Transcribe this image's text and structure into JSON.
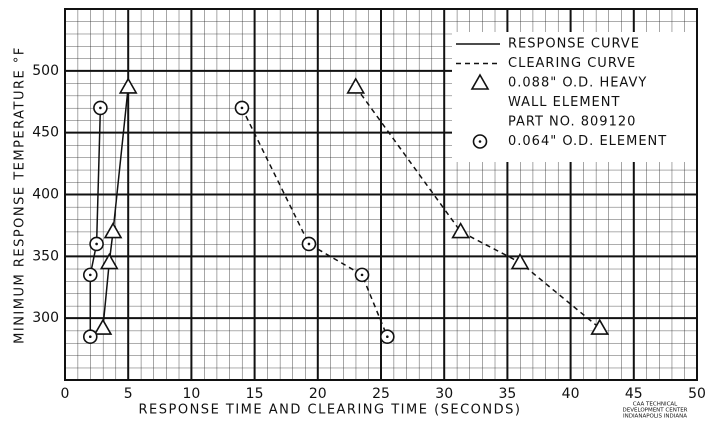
{
  "chart_data": {
    "type": "line",
    "x_label": "RESPONSE TIME AND CLEARING TIME (SECONDS)",
    "y_label": "MINIMUM RESPONSE TEMPERATURE °F",
    "xlim": [
      0,
      50
    ],
    "xticks": [
      0,
      5,
      10,
      15,
      20,
      25,
      30,
      35,
      40,
      45,
      50
    ],
    "ylim": [
      250,
      550
    ],
    "yticks": [
      300,
      350,
      400,
      450,
      500
    ],
    "grid": true,
    "color": "#111111",
    "series": [
      {
        "marker": "triangle",
        "line": "solid",
        "x": [
          3,
          3.5,
          3.8,
          5
        ],
        "values": [
          292,
          345,
          370,
          487
        ]
      },
      {
        "marker": "circle",
        "line": "solid",
        "x": [
          2,
          2,
          2.5,
          2.8
        ],
        "values": [
          285,
          335,
          360,
          470
        ]
      },
      {
        "marker": "triangle",
        "line": "dashed",
        "x": [
          23,
          31.3,
          36,
          42.3
        ],
        "values": [
          487,
          370,
          345,
          292
        ]
      },
      {
        "marker": "circle",
        "line": "dashed",
        "x": [
          14,
          19.3,
          23.5,
          25.5
        ],
        "values": [
          470,
          360,
          335,
          285
        ]
      }
    ],
    "legend": {
      "position": "upper right",
      "items": [
        {
          "symbol": "solid",
          "lines": [
            "RESPONSE CURVE"
          ]
        },
        {
          "symbol": "dashed",
          "lines": [
            "CLEARING CURVE"
          ]
        },
        {
          "symbol": "triangle",
          "lines": [
            "0.088\" O.D. HEAVY",
            "WALL ELEMENT",
            "PART NO. 809120"
          ]
        },
        {
          "symbol": "circle",
          "lines": [
            "0.064\" O.D. ELEMENT"
          ]
        }
      ]
    },
    "annotations": [
      "CAA TECHNICAL",
      "DEVELOPMENT CENTER",
      "INDIANAPOLIS INDIANA"
    ]
  }
}
